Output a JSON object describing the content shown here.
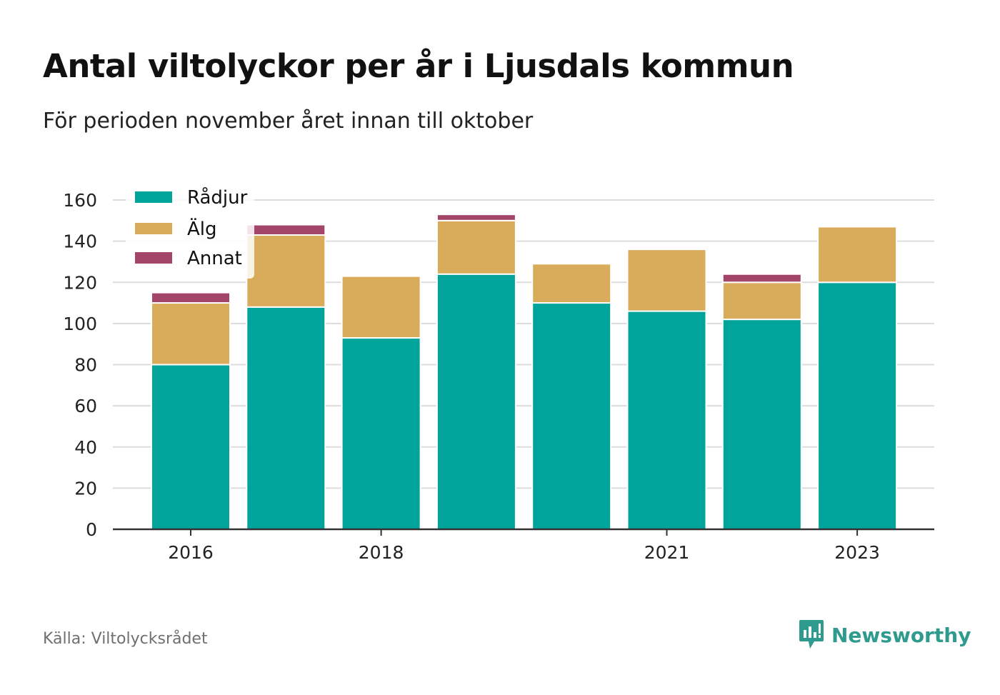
{
  "title": "Antal viltolyckor per år i Ljusdals kommun",
  "subtitle": "För perioden november året innan till oktober",
  "source": "Källa: Viltolycksrådet",
  "brand": {
    "name": "Newsworthy",
    "icon": "newsworthy-logo-icon",
    "color": "#2f9a8e"
  },
  "chart_data": {
    "type": "bar",
    "stacked": true,
    "categories": [
      "2016",
      "2017",
      "2018",
      "2019",
      "2020",
      "2021",
      "2022",
      "2023"
    ],
    "x_tick_labels": [
      "2016",
      "",
      "2018",
      "",
      "",
      "2021",
      "",
      "2023"
    ],
    "series": [
      {
        "name": "Rådjur",
        "color": "#00a49a",
        "values": [
          80,
          108,
          93,
          124,
          110,
          106,
          102,
          120
        ]
      },
      {
        "name": "Älg",
        "color": "#d8ac5a",
        "values": [
          30,
          35,
          30,
          26,
          19,
          30,
          18,
          27
        ]
      },
      {
        "name": "Annat",
        "color": "#a34569",
        "values": [
          5,
          5,
          0,
          3,
          0,
          0,
          4,
          0
        ]
      }
    ],
    "ylim": [
      0,
      160
    ],
    "yticks": [
      0,
      20,
      40,
      60,
      80,
      100,
      120,
      140,
      160
    ],
    "grid": true,
    "legend_position": "top-left",
    "xlabel": "",
    "ylabel": ""
  }
}
